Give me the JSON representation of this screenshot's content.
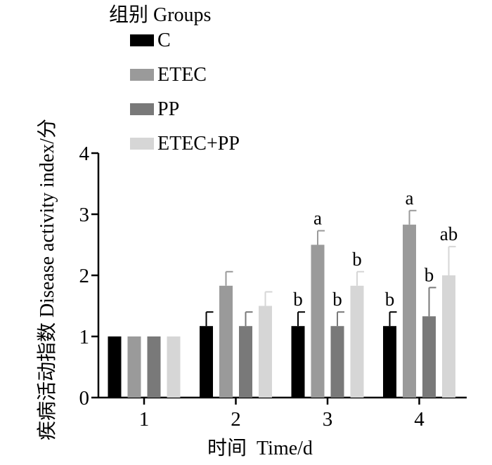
{
  "chart_data": {
    "type": "bar",
    "title": "",
    "xlabel": "时间  Time/d",
    "ylabel": "疾病活动指数 Disease activity index/分",
    "ylim": [
      0,
      4
    ],
    "yticks": [
      "0",
      "1",
      "2",
      "3",
      "4"
    ],
    "categories": [
      "1",
      "2",
      "3",
      "4"
    ],
    "legend": {
      "title": "组别 Groups",
      "placement": "top-left"
    },
    "series": [
      {
        "name": "C",
        "color": "#000000",
        "values": [
          1.0,
          1.17,
          1.17,
          1.17
        ],
        "errors": [
          0,
          0.23,
          0.23,
          0.23
        ],
        "labels": [
          "",
          "",
          "b",
          "b"
        ]
      },
      {
        "name": "ETEC",
        "color": "#9a9a9a",
        "values": [
          1.0,
          1.83,
          2.5,
          2.83
        ],
        "errors": [
          0,
          0.23,
          0.23,
          0.23
        ],
        "labels": [
          "",
          "",
          "a",
          "a"
        ]
      },
      {
        "name": "PP",
        "color": "#797979",
        "values": [
          1.0,
          1.17,
          1.17,
          1.33
        ],
        "errors": [
          0,
          0.23,
          0.23,
          0.47
        ],
        "labels": [
          "",
          "",
          "b",
          "b"
        ]
      },
      {
        "name": "ETEC+PP",
        "color": "#d6d6d6",
        "values": [
          1.0,
          1.5,
          1.83,
          2.0
        ],
        "errors": [
          0,
          0.23,
          0.23,
          0.47
        ],
        "labels": [
          "",
          "",
          "b",
          "ab"
        ]
      }
    ]
  }
}
